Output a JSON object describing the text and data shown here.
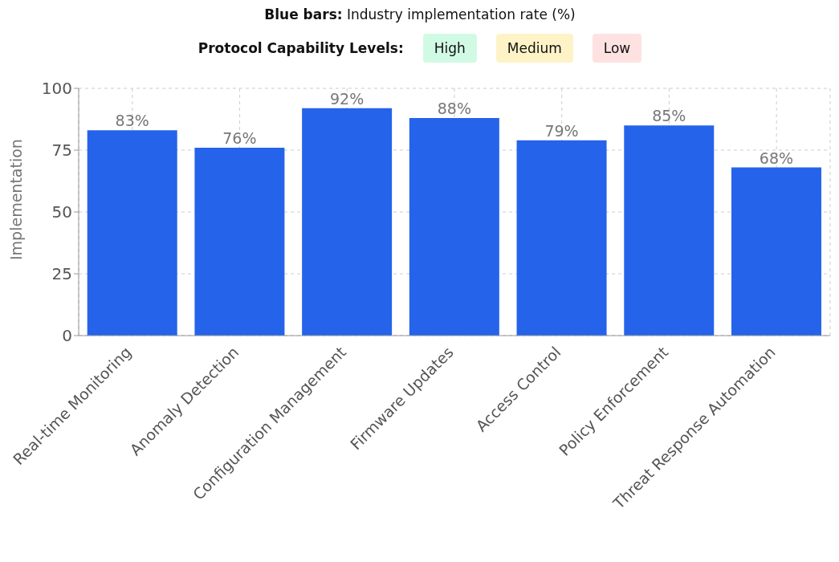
{
  "chart_data": {
    "type": "bar",
    "ylabel": "Implementation",
    "annotations": [
      "Blue bars: Industry implementation rate (%)",
      "Protocol Capability Levels:",
      "High",
      "Medium",
      "Low"
    ],
    "categories": [
      "Real-time Monitoring",
      "Anomaly Detection",
      "Configuration Management",
      "Firmware Updates",
      "Access Control",
      "Policy Enforcement",
      "Threat Response Automation"
    ],
    "values": [
      83,
      76,
      92,
      88,
      79,
      85,
      68
    ],
    "value_labels": [
      "83%",
      "76%",
      "92%",
      "88%",
      "79%",
      "85%",
      "68%"
    ],
    "color": "#2563eb",
    "ylim": [
      0,
      100
    ],
    "yticks": [
      0,
      25,
      50,
      75,
      100
    ],
    "grid": true
  }
}
